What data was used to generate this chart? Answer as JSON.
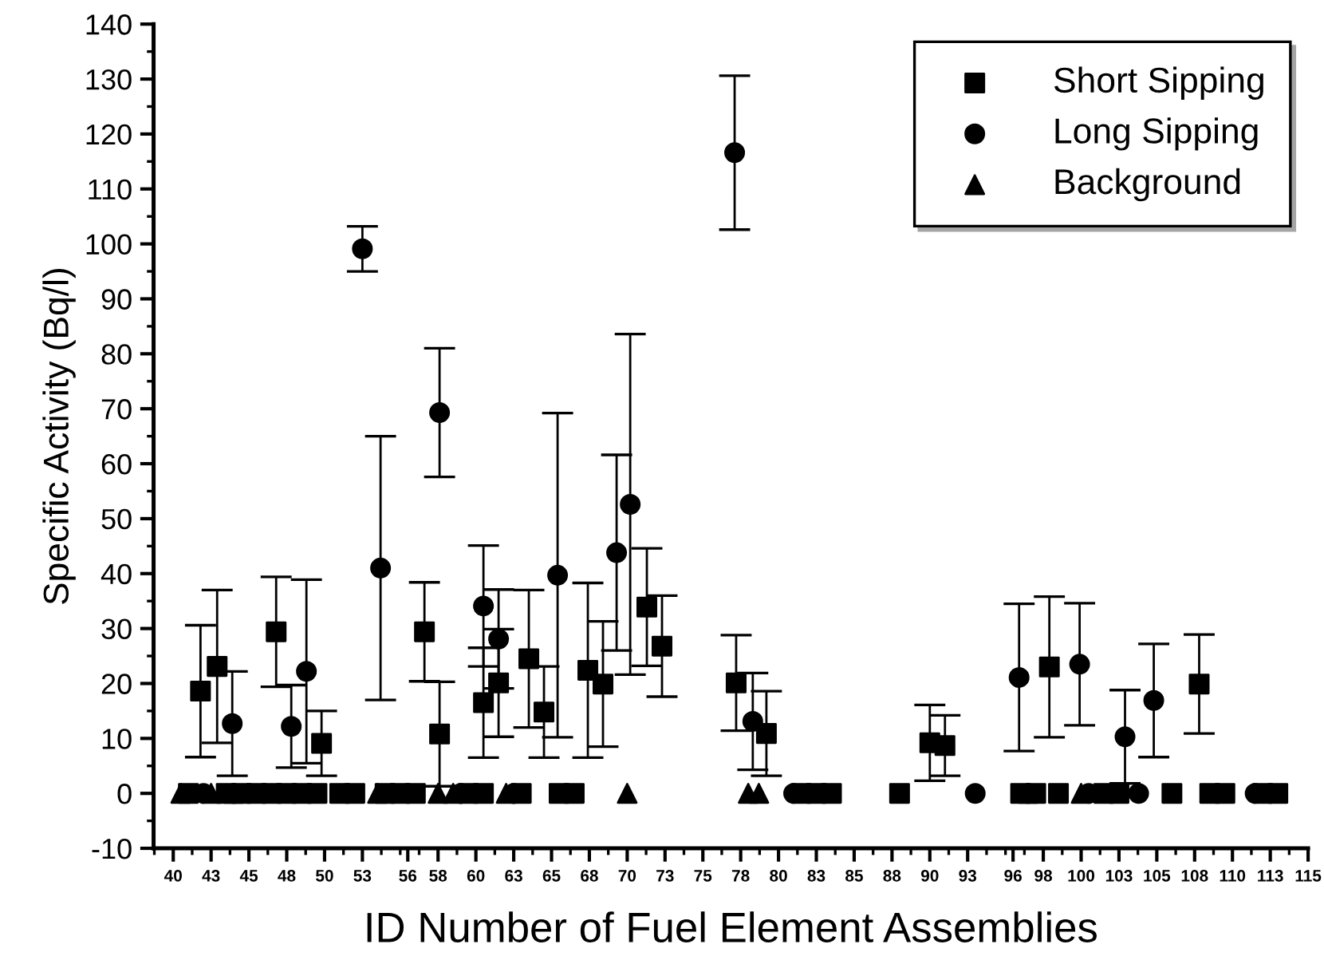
{
  "chart_data": {
    "type": "scatter",
    "xlabel": "ID Number of Fuel Element Assemblies",
    "ylabel": "Specific Activity (Bq/l)",
    "xlim": [
      38.7,
      115
    ],
    "ylim": [
      -10,
      140
    ],
    "xticks": [
      40,
      {
        "value": 42.5,
        "label": "43"
      },
      45,
      {
        "value": 47.5,
        "label": "48"
      },
      50,
      {
        "value": 52.5,
        "label": "53"
      },
      {
        "value": 55.5,
        "label": "56"
      },
      {
        "value": 57.5,
        "label": "58"
      },
      60,
      {
        "value": 62.5,
        "label": "63"
      },
      65,
      {
        "value": 67.5,
        "label": "68"
      },
      70,
      {
        "value": 72.5,
        "label": "73"
      },
      75,
      {
        "value": 77.5,
        "label": "78"
      },
      80,
      {
        "value": 82.5,
        "label": "83"
      },
      85,
      {
        "value": 87.5,
        "label": "88"
      },
      90,
      {
        "value": 92.5,
        "label": "93"
      },
      {
        "value": 95.5,
        "label": "96"
      },
      {
        "value": 97.5,
        "label": "98"
      },
      100,
      {
        "value": 102.5,
        "label": "103"
      },
      105,
      {
        "value": 107.5,
        "label": "108"
      },
      110,
      {
        "value": 112.5,
        "label": "113"
      },
      115
    ],
    "yticks": [
      -10,
      0,
      10,
      20,
      30,
      40,
      50,
      60,
      70,
      80,
      90,
      100,
      110,
      120,
      130,
      140
    ],
    "grid": false,
    "legend": "top right",
    "series": [
      {
        "name": "Short Sipping",
        "color": "#000000",
        "marker": "square",
        "x": [
          41.8,
          42.9,
          46.8,
          49.8,
          56.6,
          57.6,
          60.5,
          61.5,
          63.5,
          64.5,
          67.4,
          68.4,
          71.3,
          72.3,
          77.2,
          79.2,
          90.0,
          91.0,
          97.9,
          107.8,
          41,
          43.5,
          44.5,
          45.5,
          46.5,
          47.5,
          48.5,
          49.5,
          51,
          52,
          54,
          55,
          56,
          59.5,
          60.5,
          63,
          65.5,
          66.5,
          81.5,
          82.5,
          83.5,
          88,
          96,
          97,
          98.5,
          101.5,
          102.5,
          106,
          108.5,
          109.5,
          112,
          113
        ],
        "values": [
          18.6,
          23.1,
          29.4,
          9.1,
          29.4,
          10.8,
          16.5,
          20.1,
          24.5,
          14.8,
          22.4,
          19.9,
          33.9,
          26.8,
          20.1,
          10.9,
          9.2,
          8.7,
          23,
          19.9,
          0,
          0,
          0,
          0,
          0,
          0,
          0,
          0,
          0,
          0,
          0,
          0,
          0,
          0,
          0,
          0,
          0,
          0,
          0,
          0,
          0,
          0,
          0,
          0,
          0,
          0,
          0,
          0,
          0,
          0,
          0,
          0
        ],
        "errors": [
          12,
          13.9,
          10,
          5.9,
          9,
          9.5,
          10,
          9.8,
          12.5,
          8.3,
          15.9,
          11.4,
          10.7,
          9.2,
          8.7,
          7.7,
          6.9,
          5.5,
          12.8,
          9,
          null,
          null,
          null,
          null,
          null,
          null,
          null,
          null,
          null,
          null,
          null,
          null,
          null,
          null,
          null,
          null,
          null,
          null,
          null,
          null,
          null,
          null,
          null,
          null,
          null,
          null,
          null,
          null,
          null,
          null,
          null,
          null
        ]
      },
      {
        "name": "Long Sipping",
        "color": "#000000",
        "marker": "circle",
        "x": [
          43.9,
          47.8,
          48.8,
          52.5,
          53.7,
          57.6,
          60.5,
          61.5,
          65.4,
          69.3,
          70.2,
          77.1,
          78.3,
          95.9,
          99.9,
          102.9,
          104.8,
          42,
          59,
          62.5,
          81,
          93,
          100.5,
          103.8,
          111.5
        ],
        "values": [
          12.7,
          12.2,
          22.2,
          99.1,
          41,
          69.3,
          34.1,
          28.1,
          39.7,
          43.8,
          52.6,
          116.6,
          13.1,
          21.1,
          23.5,
          10.3,
          16.9,
          0,
          0,
          0,
          0,
          0,
          0,
          0,
          0
        ],
        "errors": [
          9.5,
          7.5,
          16.7,
          4.1,
          24,
          11.7,
          11,
          9,
          29.5,
          17.8,
          31,
          14,
          8.8,
          13.4,
          11.1,
          8.5,
          10.3,
          null,
          null,
          null,
          null,
          null,
          null,
          null,
          null
        ]
      },
      {
        "name": "Background",
        "color": "#000000",
        "marker": "triangle",
        "x": [
          40.5,
          42.5,
          44,
          53.5,
          57.5,
          58.5,
          62,
          70,
          78,
          78.7,
          96.5,
          100
        ],
        "values": [
          0,
          0,
          0,
          0,
          0,
          0,
          0,
          0,
          0,
          0,
          0,
          0
        ]
      }
    ]
  }
}
